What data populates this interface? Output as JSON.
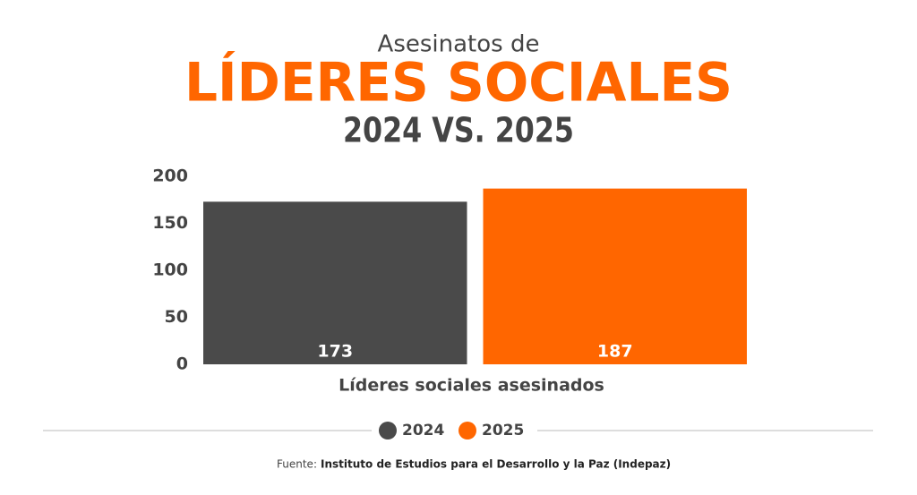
{
  "chart_data": {
    "type": "bar",
    "pretitle": "Asesinatos de",
    "title": "LÍDERES SOCIALES",
    "subtitle": "2024 VS. 2025",
    "categories": [
      "Líderes sociales asesinados"
    ],
    "series": [
      {
        "name": "2024",
        "color": "#4a4a4a",
        "values": [
          173
        ]
      },
      {
        "name": "2025",
        "color": "#ff6600",
        "values": [
          187
        ]
      }
    ],
    "ylim": [
      0,
      200
    ],
    "yticks": [
      0,
      50,
      100,
      150,
      200
    ],
    "grid": false,
    "legend": "bottom",
    "source_label": "Fuente:",
    "source": "Instituto de Estudios para el Desarrollo y la Paz (Indepaz)"
  }
}
